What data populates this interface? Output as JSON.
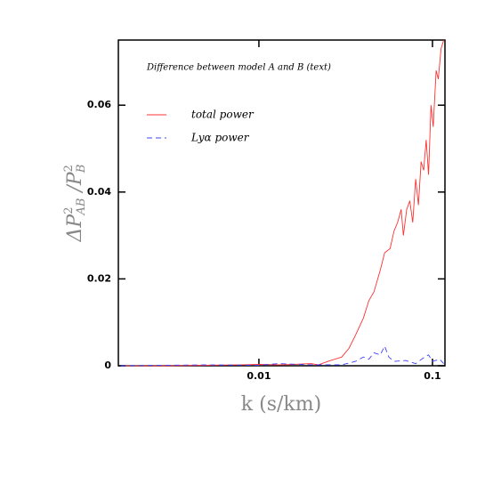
{
  "chart_data": {
    "type": "line",
    "annotation": "Difference between model A and B (text)",
    "x_label": "k (s/km)",
    "y_label": [
      "ΔP",
      "2",
      "AB",
      " /P",
      "2",
      "B"
    ],
    "xscale": "log",
    "xlim": [
      0.00155,
      0.118
    ],
    "xticks": [
      0.01,
      0.1
    ],
    "ylim": [
      0,
      0.075
    ],
    "yticks": [
      0,
      0.02,
      0.04,
      0.06
    ],
    "legend_loc": "upper left",
    "series": [
      {
        "name": "total power",
        "color": "#ff3030",
        "dash": false,
        "x": [
          0.0016,
          0.003,
          0.005,
          0.008,
          0.01,
          0.013,
          0.016,
          0.02,
          0.022,
          0.025,
          0.03,
          0.033,
          0.036,
          0.04,
          0.043,
          0.046,
          0.05,
          0.053,
          0.057,
          0.06,
          0.063,
          0.066,
          0.068,
          0.071,
          0.074,
          0.077,
          0.08,
          0.083,
          0.086,
          0.089,
          0.092,
          0.095,
          0.098,
          0.101,
          0.105,
          0.108,
          0.112,
          0.116
        ],
        "values": [
          0,
          0,
          0.0001,
          0.0002,
          0.0003,
          0.0002,
          0.0003,
          0.0005,
          0.0002,
          0.001,
          0.002,
          0.004,
          0.007,
          0.011,
          0.015,
          0.017,
          0.022,
          0.026,
          0.027,
          0.031,
          0.033,
          0.036,
          0.03,
          0.036,
          0.038,
          0.033,
          0.043,
          0.037,
          0.047,
          0.045,
          0.052,
          0.044,
          0.06,
          0.055,
          0.068,
          0.066,
          0.073,
          0.075
        ]
      },
      {
        "name": "Lyα power",
        "color": "#4040ff",
        "dash": true,
        "x": [
          0.0016,
          0.005,
          0.01,
          0.013,
          0.02,
          0.03,
          0.036,
          0.04,
          0.043,
          0.046,
          0.05,
          0.053,
          0.056,
          0.06,
          0.07,
          0.08,
          0.09,
          0.095,
          0.1,
          0.11,
          0.116
        ],
        "values": [
          0,
          0.0002,
          0.0001,
          0.0005,
          0.0002,
          0.0002,
          0.001,
          0.002,
          0.0015,
          0.003,
          0.0025,
          0.0045,
          0.002,
          0.001,
          0.0012,
          0.0005,
          0.002,
          0.0025,
          0.001,
          0.0015,
          0.0005
        ]
      }
    ]
  }
}
